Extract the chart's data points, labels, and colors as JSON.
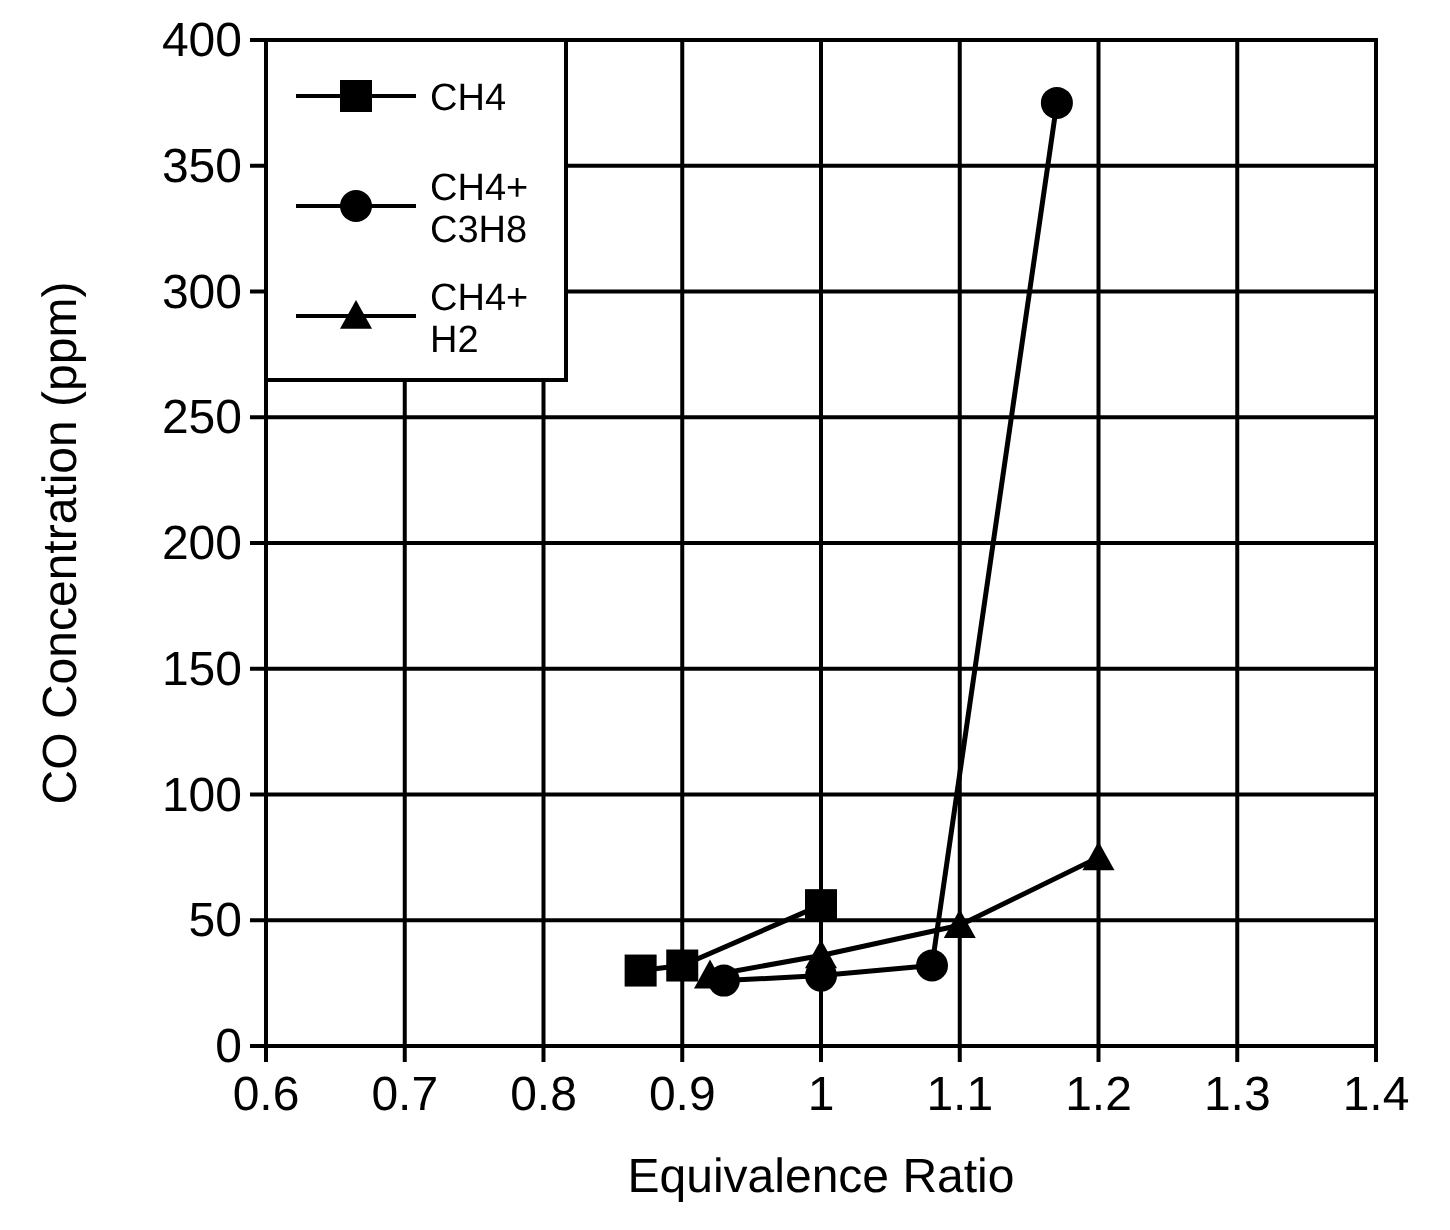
{
  "chart_data": {
    "type": "line",
    "xlabel": "Equivalence Ratio",
    "ylabel": "CO Concentration (ppm)",
    "xlim": [
      0.6,
      1.4
    ],
    "ylim": [
      0,
      400
    ],
    "xticks": [
      0.6,
      0.7,
      0.8,
      0.9,
      1,
      1.1,
      1.2,
      1.3,
      1.4
    ],
    "yticks": [
      0,
      50,
      100,
      150,
      200,
      250,
      300,
      350,
      400
    ],
    "grid": true,
    "legend": "top left",
    "series": [
      {
        "name": "CH4",
        "color": "#000000",
        "marker": "square",
        "x": [
          0.87,
          0.9,
          1.0
        ],
        "values": [
          30,
          32,
          56
        ]
      },
      {
        "name": "CH4+ C3H8",
        "color": "#000000",
        "marker": "circle",
        "x": [
          0.93,
          1.0,
          1.08,
          1.17
        ],
        "values": [
          26,
          28,
          32,
          375
        ]
      },
      {
        "name": "CH4+ H2",
        "color": "#000000",
        "marker": "triangle",
        "x": [
          0.92,
          1.0,
          1.1,
          1.2
        ],
        "values": [
          28,
          36,
          48,
          75
        ]
      }
    ]
  }
}
